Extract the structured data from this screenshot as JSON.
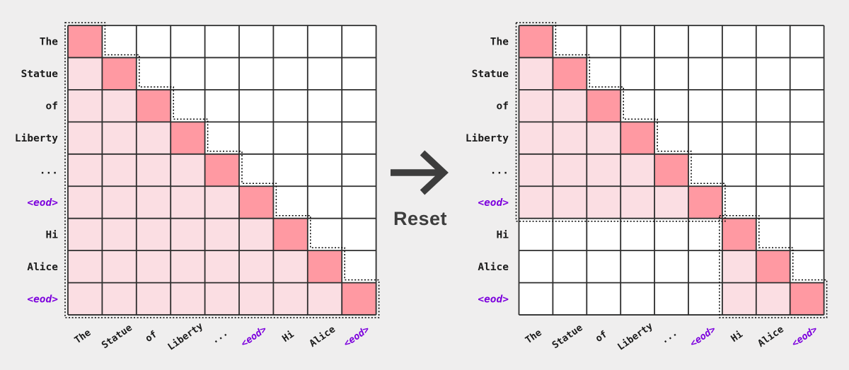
{
  "figure": {
    "background": "#efeeee",
    "tokens": [
      "The",
      "Statue",
      "of",
      "Liberty",
      "...",
      "<eod>",
      "Hi",
      "Alice",
      "<eod>"
    ],
    "transition": {
      "label": "Reset",
      "arrow_icon": "right-arrow",
      "color": "#3d3d3d"
    },
    "colors": {
      "diagonal_cell": "#ff99a2",
      "attended_cell": "#fbdee3",
      "empty_cell": "#ffffff",
      "grid_line": "#2e2e2e",
      "outline": "#000000",
      "token_text": "#1b1b1b",
      "eod_token_text": "#7c00dd",
      "arrow": "#3d3d3d"
    },
    "cell_value_encoding": {
      "0": "masked",
      "1": "attended",
      "2": "self"
    },
    "matrices": [
      {
        "name": "causal-attention-mask",
        "rows": 9,
        "cols": 9,
        "mask": [
          [
            2,
            0,
            0,
            0,
            0,
            0,
            0,
            0,
            0
          ],
          [
            1,
            2,
            0,
            0,
            0,
            0,
            0,
            0,
            0
          ],
          [
            1,
            1,
            2,
            0,
            0,
            0,
            0,
            0,
            0
          ],
          [
            1,
            1,
            1,
            2,
            0,
            0,
            0,
            0,
            0
          ],
          [
            1,
            1,
            1,
            1,
            2,
            0,
            0,
            0,
            0
          ],
          [
            1,
            1,
            1,
            1,
            1,
            2,
            0,
            0,
            0
          ],
          [
            1,
            1,
            1,
            1,
            1,
            1,
            2,
            0,
            0
          ],
          [
            1,
            1,
            1,
            1,
            1,
            1,
            1,
            2,
            0
          ],
          [
            1,
            1,
            1,
            1,
            1,
            1,
            1,
            1,
            2
          ]
        ]
      },
      {
        "name": "reset-attention-mask",
        "rows": 9,
        "cols": 9,
        "mask": [
          [
            2,
            0,
            0,
            0,
            0,
            0,
            0,
            0,
            0
          ],
          [
            1,
            2,
            0,
            0,
            0,
            0,
            0,
            0,
            0
          ],
          [
            1,
            1,
            2,
            0,
            0,
            0,
            0,
            0,
            0
          ],
          [
            1,
            1,
            1,
            2,
            0,
            0,
            0,
            0,
            0
          ],
          [
            1,
            1,
            1,
            1,
            2,
            0,
            0,
            0,
            0
          ],
          [
            1,
            1,
            1,
            1,
            1,
            2,
            0,
            0,
            0
          ],
          [
            0,
            0,
            0,
            0,
            0,
            0,
            2,
            0,
            0
          ],
          [
            0,
            0,
            0,
            0,
            0,
            0,
            1,
            2,
            0
          ],
          [
            0,
            0,
            0,
            0,
            0,
            0,
            1,
            1,
            2
          ]
        ]
      }
    ]
  }
}
